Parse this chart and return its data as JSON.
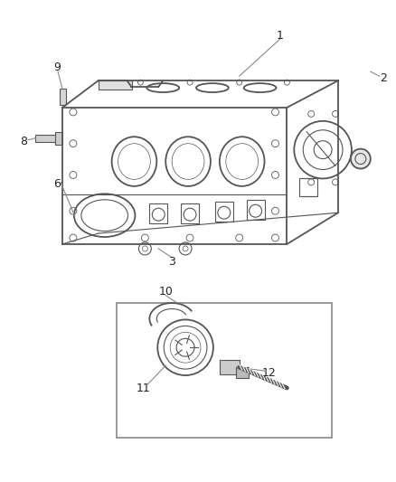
{
  "bg_color": "#ffffff",
  "fig_width": 4.38,
  "fig_height": 5.33,
  "dpi": 100,
  "line_color": "#555555",
  "text_color": "#222222",
  "label_fs": 9,
  "callout_color": "#777777"
}
